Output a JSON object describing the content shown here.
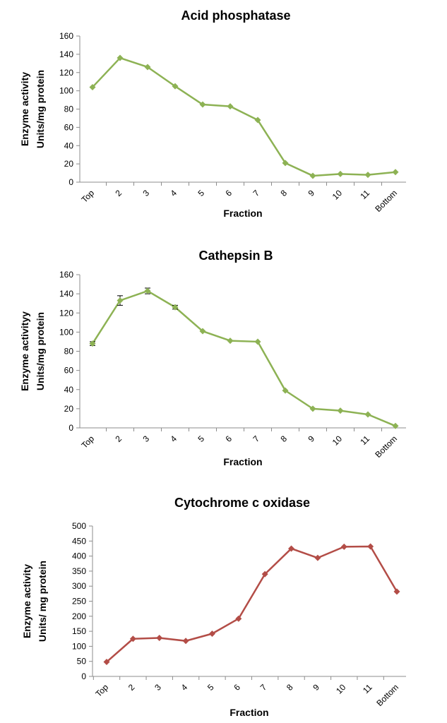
{
  "chart_data": [
    {
      "type": "line",
      "title": "Acid phosphatase",
      "xlabel": "Fraction",
      "ylabel": [
        "Enzyme activity",
        "Units/mg protein"
      ],
      "categories": [
        "Top",
        "2",
        "3",
        "4",
        "5",
        "6",
        "7",
        "8",
        "9",
        "10",
        "11",
        "Bottom"
      ],
      "values": [
        104,
        136,
        126,
        105,
        85,
        83,
        68,
        21,
        7,
        9,
        8,
        11
      ],
      "ylim": [
        0,
        160
      ],
      "yticks": [
        0,
        20,
        40,
        60,
        80,
        100,
        120,
        140,
        160
      ],
      "color": "#8db254",
      "marker": "diamond",
      "grid": false,
      "legend": "none"
    },
    {
      "type": "line",
      "title": "Cathepsin B",
      "xlabel": "Fraction",
      "ylabel": [
        "Enzyme activityy",
        "Units/mg protein"
      ],
      "categories": [
        "Top",
        "2",
        "3",
        "4",
        "5",
        "6",
        "7",
        "8",
        "9",
        "10",
        "11",
        "Bottom"
      ],
      "values": [
        88,
        133,
        143,
        126,
        101,
        91,
        90,
        39,
        20,
        18,
        14,
        2
      ],
      "error": [
        2,
        5,
        3,
        2,
        0,
        0,
        0,
        0,
        0,
        0,
        0,
        0
      ],
      "ylim": [
        0,
        160
      ],
      "yticks": [
        0,
        20,
        40,
        60,
        80,
        100,
        120,
        140,
        160
      ],
      "color": "#8db254",
      "marker": "diamond",
      "grid": false,
      "legend": "none"
    },
    {
      "type": "line",
      "title": "Cytochrome c oxidase",
      "xlabel": "Fraction",
      "ylabel": [
        "Enzyme activity",
        "Units/ mg protein"
      ],
      "categories": [
        "Top",
        "2",
        "3",
        "4",
        "5",
        "6",
        "7",
        "8",
        "9",
        "10",
        "11",
        "Bottom"
      ],
      "values": [
        48,
        125,
        128,
        118,
        142,
        192,
        340,
        425,
        394,
        431,
        432,
        282
      ],
      "ylim": [
        0,
        500
      ],
      "yticks": [
        0,
        50,
        100,
        150,
        200,
        250,
        300,
        350,
        400,
        450,
        500
      ],
      "color": "#b34d47",
      "marker": "diamond",
      "grid": false,
      "legend": "none"
    }
  ]
}
